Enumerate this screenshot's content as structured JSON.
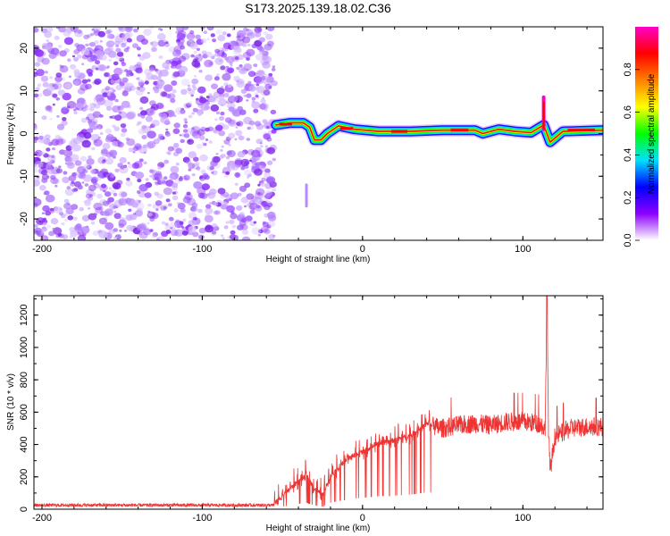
{
  "title": "S173.2025.139.18.02.C36",
  "colors": {
    "background": "#ffffff",
    "snr_line": "#ee3333",
    "noise": "#8a2be2",
    "colormap": [
      "#ffffff",
      "#8c00ff",
      "#0000ff",
      "#00e0ff",
      "#00ff00",
      "#ffff00",
      "#ff8000",
      "#ff0000",
      "#ff00c8"
    ]
  },
  "chart_data": [
    {
      "type": "heatmap",
      "xlabel": "Height of straight line (km)",
      "ylabel": "Frequency (Hz)",
      "xlim": [
        -205,
        150
      ],
      "ylim": [
        -25,
        25
      ],
      "xticks": [
        -200,
        -100,
        0,
        100
      ],
      "yticks": [
        20,
        10,
        0,
        -10,
        -20
      ],
      "colorbar": {
        "label": "Normalized spectral amplitude",
        "range": [
          0,
          1
        ],
        "ticks": [
          "0.0",
          "0.2",
          "0.4",
          "0.6",
          "0.8"
        ]
      },
      "noise_region_x": [
        -205,
        -55
      ],
      "signal_track": [
        {
          "x": -54,
          "f": 2.0
        },
        {
          "x": -45,
          "f": 2.5
        },
        {
          "x": -37,
          "f": 2.5
        },
        {
          "x": -33,
          "f": 1.5
        },
        {
          "x": -30,
          "f": -1.5
        },
        {
          "x": -26,
          "f": -1.5
        },
        {
          "x": -22,
          "f": 0.0
        },
        {
          "x": -15,
          "f": 1.8
        },
        {
          "x": -5,
          "f": 1.0
        },
        {
          "x": 10,
          "f": 0.5
        },
        {
          "x": 30,
          "f": 0.5
        },
        {
          "x": 50,
          "f": 0.8
        },
        {
          "x": 70,
          "f": 0.8
        },
        {
          "x": 75,
          "f": 0.0
        },
        {
          "x": 85,
          "f": 1.0
        },
        {
          "x": 95,
          "f": 0.5
        },
        {
          "x": 105,
          "f": 0.2
        },
        {
          "x": 113,
          "f": 2.0
        },
        {
          "x": 117,
          "f": -2.0
        },
        {
          "x": 125,
          "f": 0.5
        },
        {
          "x": 150,
          "f": 0.8
        }
      ],
      "spikes": [
        {
          "x": 113,
          "f_max": 8.5
        },
        {
          "x": -35,
          "f_min": -17,
          "f_max": -12
        }
      ]
    },
    {
      "type": "line",
      "xlabel": "Height of straight line (km)",
      "ylabel": "SNR (10 * v/v)",
      "xlim": [
        -205,
        150
      ],
      "ylim": [
        0,
        1320
      ],
      "xticks": [
        -200,
        -100,
        0,
        100
      ],
      "yticks": [
        0,
        200,
        400,
        600,
        800,
        1000,
        1200
      ],
      "series": [
        {
          "control_points": [
            [
              -205,
              25
            ],
            [
              -55,
              25
            ],
            [
              -42,
              150
            ],
            [
              -35,
              200
            ],
            [
              -30,
              120
            ],
            [
              -25,
              80
            ],
            [
              -20,
              200
            ],
            [
              -10,
              300
            ],
            [
              0,
              350
            ],
            [
              10,
              400
            ],
            [
              20,
              420
            ],
            [
              30,
              450
            ],
            [
              40,
              520
            ],
            [
              50,
              500
            ],
            [
              60,
              520
            ],
            [
              70,
              530
            ],
            [
              80,
              520
            ],
            [
              90,
              540
            ],
            [
              100,
              540
            ],
            [
              110,
              530
            ],
            [
              114,
              500
            ],
            [
              115,
              1320
            ],
            [
              116,
              500
            ],
            [
              117,
              230
            ],
            [
              120,
              450
            ],
            [
              130,
              500
            ],
            [
              140,
              510
            ],
            [
              150,
              510
            ]
          ]
        }
      ]
    }
  ]
}
